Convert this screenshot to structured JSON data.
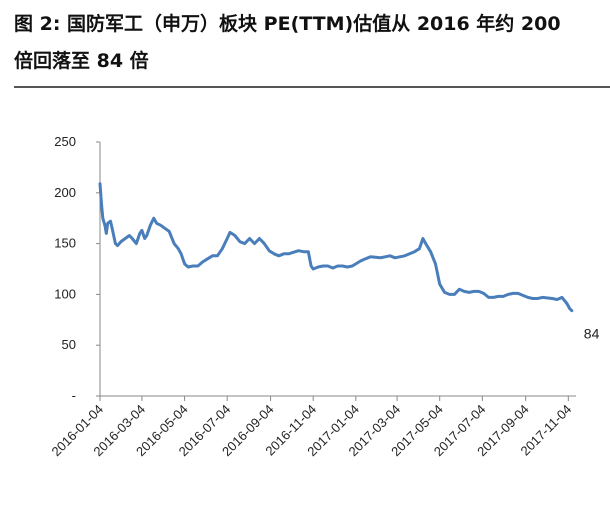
{
  "figure": {
    "title_line1": "图 2: 国防军工（申万）板块 PE(TTM)估值从 2016 年约 200",
    "title_line2": "倍回落至 84 倍"
  },
  "chart_data": {
    "type": "line",
    "title": "图 2: 国防军工（申万）板块 PE(TTM)估值从 2016 年约 200 倍回落至 84 倍",
    "xlabel": "",
    "ylabel": "",
    "ylim": [
      0,
      250
    ],
    "yticks": [
      "-",
      "50",
      "100",
      "150",
      "200",
      "250"
    ],
    "xticks": [
      "2016-01-04",
      "2016-03-04",
      "2016-05-04",
      "2016-07-04",
      "2016-09-04",
      "2016-11-04",
      "2017-01-04",
      "2017-03-04",
      "2017-05-04",
      "2017-07-04",
      "2017-09-04",
      "2017-11-04"
    ],
    "grid": false,
    "legend": "none",
    "line_color": "#4a7ebb",
    "end_label": "84",
    "series": [
      {
        "points": [
          [
            "2016-01-04",
            209
          ],
          [
            "2016-01-06",
            190
          ],
          [
            "2016-01-08",
            175
          ],
          [
            "2016-01-11",
            168
          ],
          [
            "2016-01-13",
            160
          ],
          [
            "2016-01-15",
            170
          ],
          [
            "2016-01-19",
            172
          ],
          [
            "2016-01-22",
            163
          ],
          [
            "2016-01-26",
            150
          ],
          [
            "2016-01-29",
            148
          ],
          [
            "2016-02-03",
            152
          ],
          [
            "2016-02-15",
            158
          ],
          [
            "2016-02-19",
            155
          ],
          [
            "2016-02-25",
            150
          ],
          [
            "2016-03-01",
            160
          ],
          [
            "2016-03-04",
            163
          ],
          [
            "2016-03-08",
            155
          ],
          [
            "2016-03-11",
            158
          ],
          [
            "2016-03-16",
            168
          ],
          [
            "2016-03-21",
            175
          ],
          [
            "2016-03-25",
            170
          ],
          [
            "2016-03-31",
            168
          ],
          [
            "2016-04-06",
            165
          ],
          [
            "2016-04-12",
            162
          ],
          [
            "2016-04-19",
            150
          ],
          [
            "2016-04-25",
            145
          ],
          [
            "2016-04-29",
            140
          ],
          [
            "2016-05-04",
            130
          ],
          [
            "2016-05-09",
            127
          ],
          [
            "2016-05-16",
            128
          ],
          [
            "2016-05-23",
            128
          ],
          [
            "2016-05-30",
            132
          ],
          [
            "2016-06-06",
            135
          ],
          [
            "2016-06-13",
            138
          ],
          [
            "2016-06-20",
            138
          ],
          [
            "2016-06-27",
            145
          ],
          [
            "2016-07-04",
            155
          ],
          [
            "2016-07-08",
            161
          ],
          [
            "2016-07-15",
            158
          ],
          [
            "2016-07-22",
            152
          ],
          [
            "2016-07-29",
            150
          ],
          [
            "2016-08-05",
            155
          ],
          [
            "2016-08-12",
            150
          ],
          [
            "2016-08-19",
            155
          ],
          [
            "2016-08-26",
            150
          ],
          [
            "2016-09-02",
            143
          ],
          [
            "2016-09-09",
            140
          ],
          [
            "2016-09-16",
            138
          ],
          [
            "2016-09-23",
            140
          ],
          [
            "2016-09-30",
            140
          ],
          [
            "2016-10-14",
            143
          ],
          [
            "2016-10-21",
            142
          ],
          [
            "2016-10-28",
            142
          ],
          [
            "2016-11-01",
            128
          ],
          [
            "2016-11-04",
            125
          ],
          [
            "2016-11-11",
            127
          ],
          [
            "2016-11-18",
            128
          ],
          [
            "2016-11-25",
            128
          ],
          [
            "2016-12-02",
            126
          ],
          [
            "2016-12-09",
            128
          ],
          [
            "2016-12-16",
            128
          ],
          [
            "2016-12-23",
            127
          ],
          [
            "2016-12-30",
            128
          ],
          [
            "2017-01-04",
            130
          ],
          [
            "2017-01-11",
            133
          ],
          [
            "2017-01-18",
            135
          ],
          [
            "2017-01-25",
            137
          ],
          [
            "2017-02-08",
            136
          ],
          [
            "2017-02-15",
            137
          ],
          [
            "2017-02-22",
            138
          ],
          [
            "2017-03-01",
            136
          ],
          [
            "2017-03-08",
            137
          ],
          [
            "2017-03-15",
            138
          ],
          [
            "2017-03-22",
            140
          ],
          [
            "2017-03-29",
            142
          ],
          [
            "2017-04-05",
            145
          ],
          [
            "2017-04-10",
            155
          ],
          [
            "2017-04-14",
            150
          ],
          [
            "2017-04-21",
            142
          ],
          [
            "2017-04-28",
            130
          ],
          [
            "2017-05-04",
            110
          ],
          [
            "2017-05-11",
            102
          ],
          [
            "2017-05-18",
            100
          ],
          [
            "2017-05-25",
            100
          ],
          [
            "2017-06-01",
            105
          ],
          [
            "2017-06-08",
            103
          ],
          [
            "2017-06-15",
            102
          ],
          [
            "2017-06-22",
            103
          ],
          [
            "2017-06-29",
            103
          ],
          [
            "2017-07-06",
            101
          ],
          [
            "2017-07-13",
            97
          ],
          [
            "2017-07-20",
            97
          ],
          [
            "2017-07-27",
            98
          ],
          [
            "2017-08-03",
            98
          ],
          [
            "2017-08-10",
            100
          ],
          [
            "2017-08-17",
            101
          ],
          [
            "2017-08-24",
            101
          ],
          [
            "2017-08-31",
            99
          ],
          [
            "2017-09-07",
            97
          ],
          [
            "2017-09-14",
            96
          ],
          [
            "2017-09-21",
            96
          ],
          [
            "2017-09-28",
            97
          ],
          [
            "2017-10-12",
            96
          ],
          [
            "2017-10-19",
            95
          ],
          [
            "2017-10-26",
            97
          ],
          [
            "2017-11-02",
            91
          ],
          [
            "2017-11-06",
            86
          ],
          [
            "2017-11-09",
            84
          ]
        ]
      }
    ]
  }
}
